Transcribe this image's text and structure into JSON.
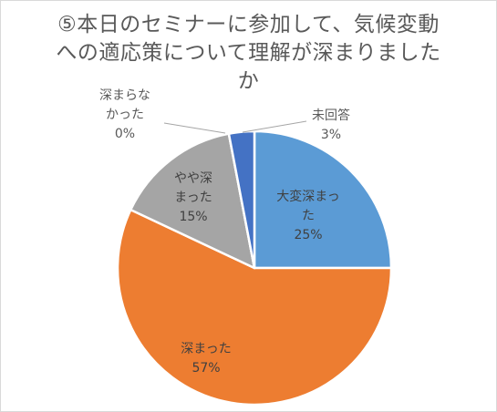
{
  "chart_data": {
    "type": "pie",
    "title": "⑤本日のセミナーに参加して、気候変動への適応策について理解が深まりましたか",
    "slices": [
      {
        "label_lines": [
          "大変深まっ",
          "た"
        ],
        "percent_label": "25%",
        "value": 25,
        "color": "#5b9bd5"
      },
      {
        "label_lines": [
          "深まった"
        ],
        "percent_label": "57%",
        "value": 57,
        "color": "#ed7d31"
      },
      {
        "label_lines": [
          "やや深",
          "まった"
        ],
        "percent_label": "15%",
        "value": 15,
        "color": "#a5a5a5"
      },
      {
        "label_lines": [
          "深まらな",
          "かった"
        ],
        "percent_label": "0%",
        "value": 0,
        "color": "#ffc000"
      },
      {
        "label_lines": [
          "未回答"
        ],
        "percent_label": "3%",
        "value": 3,
        "color": "#4472c4"
      }
    ]
  }
}
